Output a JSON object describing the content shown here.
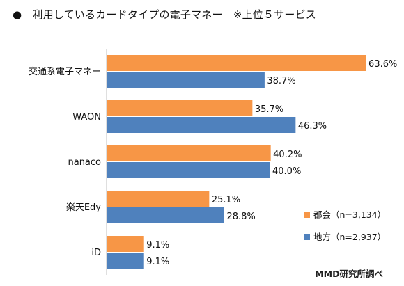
{
  "title": "●　利用しているカードタイプの電子マネー　※上位５サービス",
  "credit": "MMD研究所調べ",
  "chart_data": {
    "type": "bar",
    "orientation": "horizontal",
    "categories": [
      "交通系電子マネー",
      "WAON",
      "nanaco",
      "楽天Edy",
      "iD"
    ],
    "series": [
      {
        "name": "都会（n=3,134）",
        "color": "#f79646",
        "values": [
          63.6,
          35.7,
          40.2,
          25.1,
          9.1
        ]
      },
      {
        "name": "地方（n=2,937）",
        "color": "#4f81bd",
        "values": [
          38.7,
          46.3,
          40.0,
          28.8,
          9.1
        ]
      }
    ],
    "value_labels": [
      [
        "63.6%",
        "35.7%",
        "40.2%",
        "25.1%",
        "9.1%"
      ],
      [
        "38.7%",
        "46.3%",
        "40.0%",
        "28.8%",
        "9.1%"
      ]
    ],
    "xlim": [
      0,
      70
    ],
    "grid": false,
    "legend_position": "bottom-right"
  }
}
